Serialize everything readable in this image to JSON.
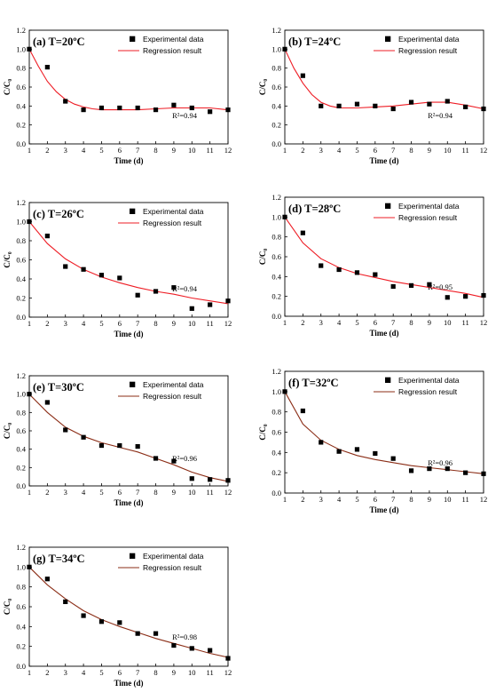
{
  "chart_data": [
    {
      "type": "scatter",
      "title": "(a) T=20ºC",
      "xlabel": "Time (d)",
      "ylabel": "C/C₀",
      "xlim": [
        1,
        12
      ],
      "ylim": [
        0.0,
        1.2
      ],
      "xticks": [
        1,
        2,
        3,
        4,
        5,
        6,
        7,
        8,
        9,
        10,
        11,
        12
      ],
      "yticks": [
        "0.0",
        "0.2",
        "0.4",
        "0.6",
        "0.8",
        "1.0",
        "1.2"
      ],
      "legend": [
        "Experimental data",
        "Regression result"
      ],
      "legend_position": "top-right",
      "annotation": "R²=0.94",
      "fit_color": "#ee1c24",
      "series": [
        {
          "name": "Experimental data",
          "x": [
            1,
            2,
            3,
            4,
            5,
            6,
            7,
            8,
            9,
            10,
            11,
            12
          ],
          "y": [
            1.0,
            0.81,
            0.45,
            0.36,
            0.38,
            0.38,
            0.38,
            0.36,
            0.41,
            0.38,
            0.34,
            0.36
          ]
        },
        {
          "name": "Regression result",
          "x": [
            1,
            1.5,
            2,
            2.5,
            3,
            3.5,
            4,
            4.5,
            5,
            6,
            7,
            8,
            9,
            10,
            11,
            12
          ],
          "y": [
            1.0,
            0.82,
            0.66,
            0.55,
            0.47,
            0.42,
            0.39,
            0.37,
            0.36,
            0.36,
            0.36,
            0.37,
            0.38,
            0.38,
            0.38,
            0.36
          ]
        }
      ]
    },
    {
      "type": "scatter",
      "title": "(b) T=24ºC",
      "xlabel": "Time (d)",
      "ylabel": "C/C₀",
      "xlim": [
        1,
        12
      ],
      "ylim": [
        0.0,
        1.2
      ],
      "xticks": [
        1,
        2,
        3,
        4,
        5,
        6,
        7,
        8,
        9,
        10,
        11,
        12
      ],
      "yticks": [
        "0.0",
        "0.2",
        "0.4",
        "0.6",
        "0.8",
        "1.0",
        "1.2"
      ],
      "legend": [
        "Experimental data",
        "Regression result"
      ],
      "legend_position": "top-right",
      "annotation": "R²=0.94",
      "fit_color": "#ee1c24",
      "series": [
        {
          "name": "Experimental data",
          "x": [
            1,
            2,
            3,
            4,
            5,
            6,
            7,
            8,
            9,
            10,
            11,
            12
          ],
          "y": [
            1.0,
            0.72,
            0.4,
            0.4,
            0.42,
            0.4,
            0.37,
            0.44,
            0.42,
            0.45,
            0.39,
            0.37
          ]
        },
        {
          "name": "Regression result",
          "x": [
            1,
            1.5,
            2,
            2.5,
            3,
            3.5,
            4,
            5,
            6,
            7,
            8,
            9,
            10,
            11,
            12
          ],
          "y": [
            1.0,
            0.8,
            0.64,
            0.52,
            0.44,
            0.4,
            0.38,
            0.38,
            0.39,
            0.4,
            0.42,
            0.44,
            0.44,
            0.41,
            0.37
          ]
        }
      ]
    },
    {
      "type": "scatter",
      "title": "(c) T=26ºC",
      "xlabel": "Time (d)",
      "ylabel": "C/C₀",
      "xlim": [
        1,
        12
      ],
      "ylim": [
        0.0,
        1.2
      ],
      "xticks": [
        1,
        2,
        3,
        4,
        5,
        6,
        7,
        8,
        9,
        10,
        11,
        12
      ],
      "yticks": [
        "0.0",
        "0.2",
        "0.4",
        "0.6",
        "0.8",
        "1.0",
        "1.2"
      ],
      "legend": [
        "Experimental data",
        "Regression result"
      ],
      "legend_position": "top-right",
      "annotation": "R²=0.94",
      "fit_color": "#ee1c24",
      "series": [
        {
          "name": "Experimental data",
          "x": [
            1,
            2,
            3,
            4,
            5,
            6,
            7,
            8,
            9,
            10,
            11,
            12
          ],
          "y": [
            1.0,
            0.85,
            0.53,
            0.5,
            0.44,
            0.41,
            0.23,
            0.27,
            0.31,
            0.09,
            0.13,
            0.17
          ]
        },
        {
          "name": "Regression result",
          "x": [
            1,
            2,
            3,
            4,
            5,
            6,
            7,
            8,
            9,
            10,
            11,
            12
          ],
          "y": [
            1.0,
            0.77,
            0.61,
            0.5,
            0.42,
            0.36,
            0.31,
            0.27,
            0.24,
            0.2,
            0.17,
            0.14
          ]
        }
      ]
    },
    {
      "type": "scatter",
      "title": "(d) T=28ºC",
      "xlabel": "Time (d)",
      "ylabel": "C/C₀",
      "xlim": [
        1,
        12
      ],
      "ylim": [
        0.0,
        1.2
      ],
      "xticks": [
        1,
        2,
        3,
        4,
        5,
        6,
        7,
        8,
        9,
        10,
        11,
        12
      ],
      "yticks": [
        "0.0",
        "0.2",
        "0.4",
        "0.6",
        "0.8",
        "1.0",
        "1.2"
      ],
      "legend": [
        "Experimental data",
        "Regression result"
      ],
      "legend_position": "top-right",
      "annotation": "R²=0.95",
      "fit_color": "#ee1c24",
      "series": [
        {
          "name": "Experimental data",
          "x": [
            1,
            2,
            3,
            4,
            5,
            6,
            7,
            8,
            9,
            10,
            11,
            12
          ],
          "y": [
            1.0,
            0.84,
            0.51,
            0.47,
            0.44,
            0.42,
            0.3,
            0.31,
            0.32,
            0.19,
            0.2,
            0.21
          ]
        },
        {
          "name": "Regression result",
          "x": [
            1,
            2,
            3,
            4,
            5,
            6,
            7,
            8,
            9,
            10,
            11,
            12
          ],
          "y": [
            1.0,
            0.74,
            0.58,
            0.49,
            0.43,
            0.39,
            0.35,
            0.32,
            0.29,
            0.26,
            0.23,
            0.19
          ]
        }
      ]
    },
    {
      "type": "scatter",
      "title": "(e) T=30ºC",
      "xlabel": "Time (d)",
      "ylabel": "C/C₀",
      "xlim": [
        1,
        12
      ],
      "ylim": [
        0.0,
        1.2
      ],
      "xticks": [
        1,
        2,
        3,
        4,
        5,
        6,
        7,
        8,
        9,
        10,
        11,
        12
      ],
      "yticks": [
        "0.0",
        "0.2",
        "0.4",
        "0.6",
        "0.8",
        "1.0",
        "1.2"
      ],
      "legend": [
        "Experimental data",
        "Regression result"
      ],
      "legend_position": "top-right",
      "annotation": "R²=0.96",
      "fit_color": "#8b2d16",
      "series": [
        {
          "name": "Experimental data",
          "x": [
            1,
            2,
            3,
            4,
            5,
            6,
            7,
            8,
            9,
            10,
            11,
            12
          ],
          "y": [
            1.0,
            0.91,
            0.61,
            0.53,
            0.44,
            0.44,
            0.43,
            0.3,
            0.27,
            0.08,
            0.07,
            0.06
          ]
        },
        {
          "name": "Regression result",
          "x": [
            1,
            2,
            3,
            4,
            5,
            6,
            7,
            8,
            9,
            10,
            11,
            12
          ],
          "y": [
            1.0,
            0.8,
            0.64,
            0.54,
            0.47,
            0.42,
            0.37,
            0.3,
            0.23,
            0.15,
            0.09,
            0.05
          ]
        }
      ]
    },
    {
      "type": "scatter",
      "title": "(f) T=32ºC",
      "xlabel": "Time (d)",
      "ylabel": "C/C₀",
      "xlim": [
        1,
        12
      ],
      "ylim": [
        0.0,
        1.2
      ],
      "xticks": [
        1,
        2,
        3,
        4,
        5,
        6,
        7,
        8,
        9,
        10,
        11,
        12
      ],
      "yticks": [
        "0.0",
        "0.2",
        "0.4",
        "0.6",
        "0.8",
        "1.0",
        "1.2"
      ],
      "legend": [
        "Experimental data",
        "Regression result"
      ],
      "legend_position": "top-right",
      "annotation": "R²=0.96",
      "fit_color": "#8b2d16",
      "series": [
        {
          "name": "Experimental data",
          "x": [
            1,
            2,
            3,
            4,
            5,
            6,
            7,
            8,
            9,
            10,
            11,
            12
          ],
          "y": [
            1.0,
            0.81,
            0.5,
            0.41,
            0.43,
            0.39,
            0.34,
            0.22,
            0.24,
            0.24,
            0.2,
            0.19
          ]
        },
        {
          "name": "Regression result",
          "x": [
            1,
            2,
            3,
            4,
            5,
            6,
            7,
            8,
            9,
            10,
            11,
            12
          ],
          "y": [
            1.0,
            0.68,
            0.52,
            0.43,
            0.37,
            0.33,
            0.3,
            0.27,
            0.25,
            0.23,
            0.21,
            0.19
          ]
        }
      ]
    },
    {
      "type": "scatter",
      "title": "(g) T=34ºC",
      "xlabel": "Time (d)",
      "ylabel": "C/C₀",
      "xlim": [
        1,
        12
      ],
      "ylim": [
        0.0,
        1.2
      ],
      "xticks": [
        1,
        2,
        3,
        4,
        5,
        6,
        7,
        8,
        9,
        10,
        11,
        12
      ],
      "yticks": [
        "0.0",
        "0.2",
        "0.4",
        "0.6",
        "0.8",
        "1.0",
        "1.2"
      ],
      "legend": [
        "Experimental data",
        "Regression result"
      ],
      "legend_position": "top-right",
      "annotation": "R²=0.98",
      "fit_color": "#8b2d16",
      "series": [
        {
          "name": "Experimental data",
          "x": [
            1,
            2,
            3,
            4,
            5,
            6,
            7,
            8,
            9,
            10,
            11,
            12
          ],
          "y": [
            1.0,
            0.88,
            0.65,
            0.51,
            0.45,
            0.44,
            0.33,
            0.33,
            0.21,
            0.18,
            0.16,
            0.08
          ]
        },
        {
          "name": "Regression result",
          "x": [
            1,
            2,
            3,
            4,
            5,
            6,
            7,
            8,
            9,
            10,
            11,
            12
          ],
          "y": [
            1.0,
            0.82,
            0.68,
            0.56,
            0.47,
            0.4,
            0.34,
            0.28,
            0.23,
            0.18,
            0.13,
            0.09
          ]
        }
      ]
    }
  ]
}
